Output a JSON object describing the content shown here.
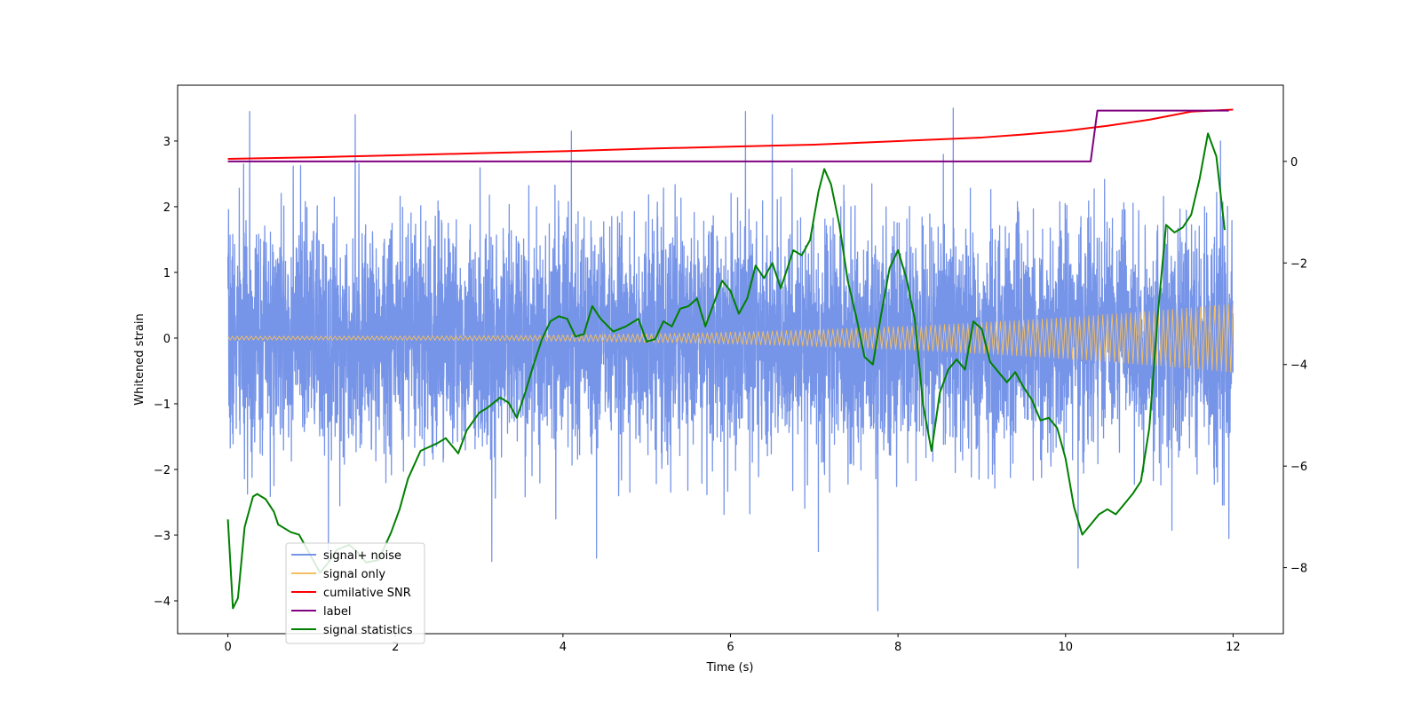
{
  "chart_data": {
    "type": "line",
    "title": "",
    "xlabel": "Time (s)",
    "ylabel": "Whitened strain",
    "ylabel_right": "",
    "xlim": [
      -0.6,
      12.6
    ],
    "ylim": [
      -4.5,
      3.85
    ],
    "ylim_right": [
      -9.3,
      1.5
    ],
    "x_ticks": [
      0,
      2,
      4,
      6,
      8,
      10,
      12
    ],
    "x_tick_labels": [
      "0",
      "2",
      "4",
      "6",
      "8",
      "10",
      "12"
    ],
    "y_ticks": [
      -4,
      -3,
      -2,
      -1,
      0,
      1,
      2,
      3
    ],
    "y_tick_labels": [
      "−4",
      "−3",
      "−2",
      "−1",
      "0",
      "1",
      "2",
      "3"
    ],
    "y_ticks_right": [
      -8,
      -6,
      -4,
      -2,
      0
    ],
    "y_tick_labels_right": [
      "−8",
      "−6",
      "−4",
      "−2",
      "0"
    ],
    "grid": false,
    "legend_position": "lower-left",
    "series": [
      {
        "name": "signal+ noise",
        "color": "#7694e8",
        "axis": "left",
        "kind": "noise",
        "t_range": [
          0,
          12
        ],
        "std": 0.85,
        "samples": 6000,
        "seed": 7,
        "spikes": [
          [
            0.26,
            3.45
          ],
          [
            1.52,
            3.4
          ],
          [
            4.1,
            3.15
          ],
          [
            6.18,
            3.45
          ],
          [
            6.5,
            3.4
          ],
          [
            8.66,
            3.5
          ],
          [
            7.76,
            -4.15
          ],
          [
            10.15,
            -3.5
          ],
          [
            1.2,
            -3.4
          ],
          [
            3.15,
            -3.4
          ],
          [
            7.05,
            -3.25
          ],
          [
            4.4,
            -3.35
          ],
          [
            11.85,
            3.0
          ],
          [
            11.95,
            -3.05
          ]
        ]
      },
      {
        "name": "signal only",
        "color": "#f4bf60",
        "axis": "left",
        "kind": "chirp",
        "t_range": [
          0,
          12
        ],
        "amp_start": 0.03,
        "amp_end": 0.52,
        "cycles_per_s": 18
      },
      {
        "name": "cumilative SNR",
        "color": "#ff0000",
        "axis": "right",
        "t": [
          0,
          1,
          2,
          3,
          4,
          5,
          6,
          7,
          8,
          9,
          9.5,
          10,
          10.5,
          11,
          11.5,
          12
        ],
        "values": [
          0.05,
          0.08,
          0.12,
          0.16,
          0.2,
          0.25,
          0.29,
          0.33,
          0.4,
          0.47,
          0.53,
          0.6,
          0.7,
          0.82,
          0.98,
          1.02
        ]
      },
      {
        "name": "label",
        "color": "#800080",
        "axis": "right",
        "t": [
          0,
          10.3,
          10.38,
          11.95
        ],
        "values": [
          0,
          0,
          1,
          1
        ]
      },
      {
        "name": "signal statistics",
        "color": "#008000",
        "axis": "right",
        "t": [
          0,
          0.06,
          0.12,
          0.2,
          0.3,
          0.35,
          0.45,
          0.55,
          0.6,
          0.65,
          0.75,
          0.85,
          0.95,
          1.05,
          1.1,
          1.2,
          1.3,
          1.45,
          1.55,
          1.65,
          1.8,
          1.95,
          2.05,
          2.15,
          2.3,
          2.5,
          2.6,
          2.75,
          2.85,
          3.0,
          3.1,
          3.25,
          3.35,
          3.45,
          3.55,
          3.65,
          3.75,
          3.85,
          3.95,
          4.05,
          4.15,
          4.25,
          4.35,
          4.45,
          4.6,
          4.75,
          4.9,
          5.0,
          5.1,
          5.2,
          5.3,
          5.4,
          5.5,
          5.6,
          5.7,
          5.8,
          5.9,
          6.0,
          6.1,
          6.2,
          6.3,
          6.4,
          6.5,
          6.6,
          6.75,
          6.85,
          6.95,
          7.05,
          7.12,
          7.2,
          7.3,
          7.4,
          7.5,
          7.6,
          7.7,
          7.8,
          7.9,
          8.0,
          8.1,
          8.2,
          8.3,
          8.4,
          8.5,
          8.6,
          8.7,
          8.8,
          8.9,
          9.0,
          9.1,
          9.2,
          9.3,
          9.4,
          9.5,
          9.6,
          9.7,
          9.8,
          9.9,
          10.0,
          10.1,
          10.2,
          10.3,
          10.4,
          10.5,
          10.6,
          10.7,
          10.8,
          10.9,
          11.0,
          11.1,
          11.2,
          11.3,
          11.4,
          11.5,
          11.6,
          11.7,
          11.8,
          11.9
        ],
        "values": [
          -7.05,
          -8.8,
          -8.6,
          -7.2,
          -6.6,
          -6.55,
          -6.65,
          -6.9,
          -7.15,
          -7.2,
          -7.3,
          -7.35,
          -7.65,
          -7.95,
          -8.1,
          -7.9,
          -7.65,
          -7.55,
          -7.7,
          -7.9,
          -7.85,
          -7.3,
          -6.85,
          -6.25,
          -5.7,
          -5.55,
          -5.45,
          -5.75,
          -5.3,
          -4.95,
          -4.85,
          -4.65,
          -4.75,
          -5.05,
          -4.55,
          -4.0,
          -3.5,
          -3.15,
          -3.05,
          -3.1,
          -3.45,
          -3.4,
          -2.85,
          -3.1,
          -3.35,
          -3.25,
          -3.1,
          -3.55,
          -3.5,
          -3.15,
          -3.25,
          -2.9,
          -2.85,
          -2.7,
          -3.25,
          -2.8,
          -2.35,
          -2.55,
          -3.0,
          -2.7,
          -2.05,
          -2.3,
          -2.0,
          -2.5,
          -1.75,
          -1.85,
          -1.55,
          -0.6,
          -0.15,
          -0.45,
          -1.25,
          -2.35,
          -3.05,
          -3.85,
          -4.0,
          -3.0,
          -2.1,
          -1.75,
          -2.3,
          -3.1,
          -4.8,
          -5.7,
          -4.55,
          -4.1,
          -3.9,
          -4.1,
          -3.15,
          -3.3,
          -3.95,
          -4.15,
          -4.35,
          -4.15,
          -4.45,
          -4.7,
          -5.1,
          -5.05,
          -5.25,
          -5.85,
          -6.8,
          -7.35,
          -7.15,
          -6.95,
          -6.85,
          -6.95,
          -6.75,
          -6.55,
          -6.3,
          -5.25,
          -3.05,
          -1.25,
          -1.4,
          -1.3,
          -1.05,
          -0.35,
          0.55,
          0.1,
          -1.35
        ]
      }
    ]
  }
}
